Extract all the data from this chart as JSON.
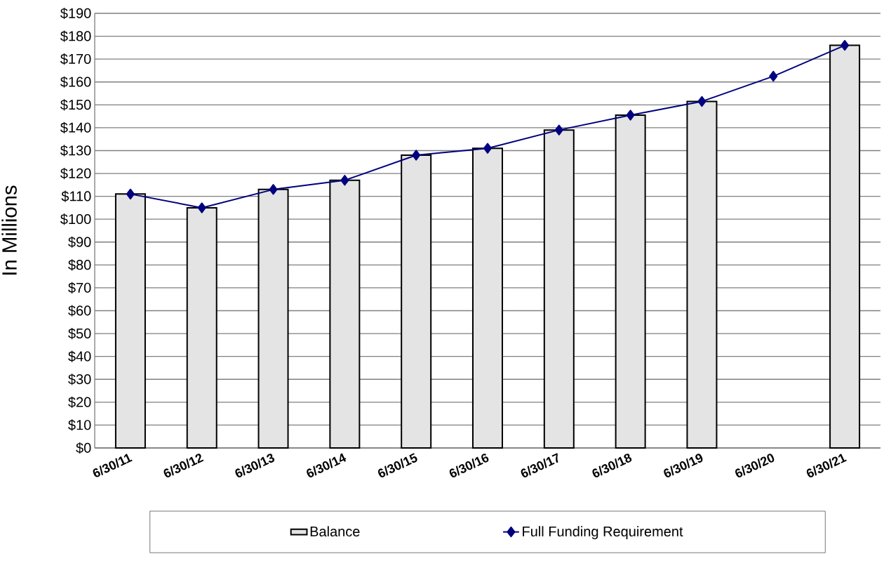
{
  "chart_data": {
    "type": "bar",
    "ylabel": "In Millions",
    "categories": [
      "6/30/11",
      "6/30/12",
      "6/30/13",
      "6/30/14",
      "6/30/15",
      "6/30/16",
      "6/30/17",
      "6/30/18",
      "6/30/19",
      "6/30/20",
      "6/30/21"
    ],
    "series": [
      {
        "name": "Balance",
        "color": "#e4e4e4",
        "values": [
          111,
          105,
          113,
          117,
          128,
          131,
          139,
          145.5,
          151.5,
          null,
          176
        ]
      },
      {
        "name": "Full Funding Requirement",
        "type": "line",
        "color": "#000080",
        "marker": "diamond",
        "values": [
          111,
          105,
          113,
          117,
          128,
          131,
          139,
          145.5,
          151.5,
          162.5,
          176
        ]
      }
    ],
    "ylim": [
      0,
      190
    ],
    "yticks": [
      {
        "value": 0,
        "label": "$0"
      },
      {
        "value": 10,
        "label": "$10"
      },
      {
        "value": 20,
        "label": "$20"
      },
      {
        "value": 30,
        "label": "$30"
      },
      {
        "value": 40,
        "label": "$40"
      },
      {
        "value": 50,
        "label": "$50"
      },
      {
        "value": 60,
        "label": "$60"
      },
      {
        "value": 70,
        "label": "$70"
      },
      {
        "value": 80,
        "label": "$80"
      },
      {
        "value": 90,
        "label": "$90"
      },
      {
        "value": 100,
        "label": "$100"
      },
      {
        "value": 110,
        "label": "$110"
      },
      {
        "value": 120,
        "label": "$120"
      },
      {
        "value": 130,
        "label": "$130"
      },
      {
        "value": 140,
        "label": "$140"
      },
      {
        "value": 150,
        "label": "$150"
      },
      {
        "value": 160,
        "label": "$160"
      },
      {
        "value": 170,
        "label": "$170"
      },
      {
        "value": 180,
        "label": "$180"
      },
      {
        "value": 190,
        "label": "$190"
      }
    ],
    "grid": "y",
    "legend": "bottom"
  }
}
